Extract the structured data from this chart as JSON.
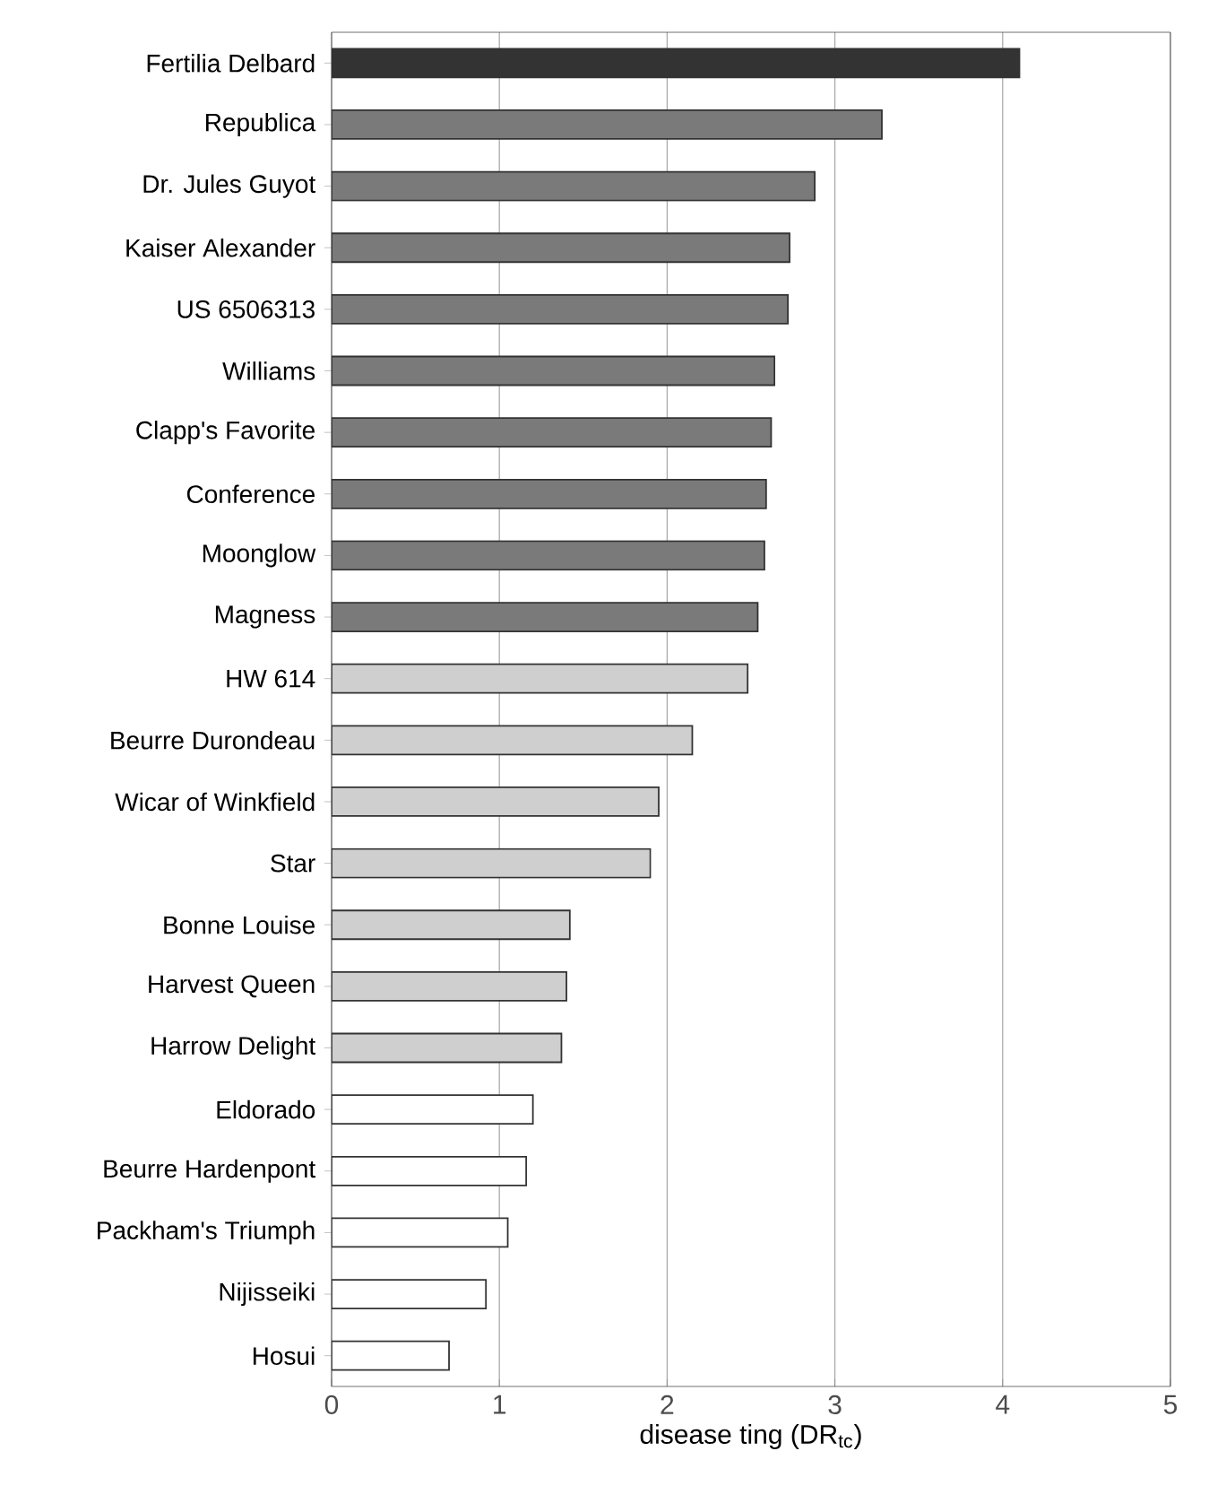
{
  "chart_data": {
    "type": "bar",
    "orientation": "horizontal",
    "xlabel": "disease ting (DR$_{tc}$)",
    "categories": [
      "Fertilia Delbard",
      "Republica",
      "Dr. Jules Guyot",
      "Kaiser Alexander",
      "US 6506313",
      "Williams",
      "Clapp's Favorite",
      "Conference",
      "Moonglow",
      "Magness",
      "HW 614",
      "Beurre Durondeau",
      "Wicar of Winkfield",
      "Star",
      "Bonne Louise",
      "Harvest Queen",
      "Harrow Delight",
      "Eldorado",
      "Beurre Hardenpont",
      "Packham's Triumph",
      "Nijisseiki",
      "Hosui"
    ],
    "values": [
      4.1,
      3.28,
      2.88,
      2.73,
      2.72,
      2.64,
      2.62,
      2.59,
      2.58,
      2.54,
      2.48,
      2.15,
      1.95,
      1.9,
      1.42,
      1.4,
      1.37,
      1.2,
      1.16,
      1.05,
      0.92,
      0.7
    ],
    "colors": [
      "#333333",
      "#7a7a7a",
      "#7a7a7a",
      "#7a7a7a",
      "#7a7a7a",
      "#7a7a7a",
      "#7a7a7a",
      "#7a7a7a",
      "#7a7a7a",
      "#7a7a7a",
      "#cfcfcf",
      "#cfcfcf",
      "#cfcfcf",
      "#cfcfcf",
      "#cfcfcf",
      "#cfcfcf",
      "#cfcfcf",
      "#ffffff",
      "#ffffff",
      "#ffffff",
      "#ffffff",
      "#ffffff"
    ],
    "xlim": [
      0,
      5
    ],
    "xticks": [
      0,
      1,
      2,
      3,
      4,
      5
    ],
    "grid": "x"
  }
}
